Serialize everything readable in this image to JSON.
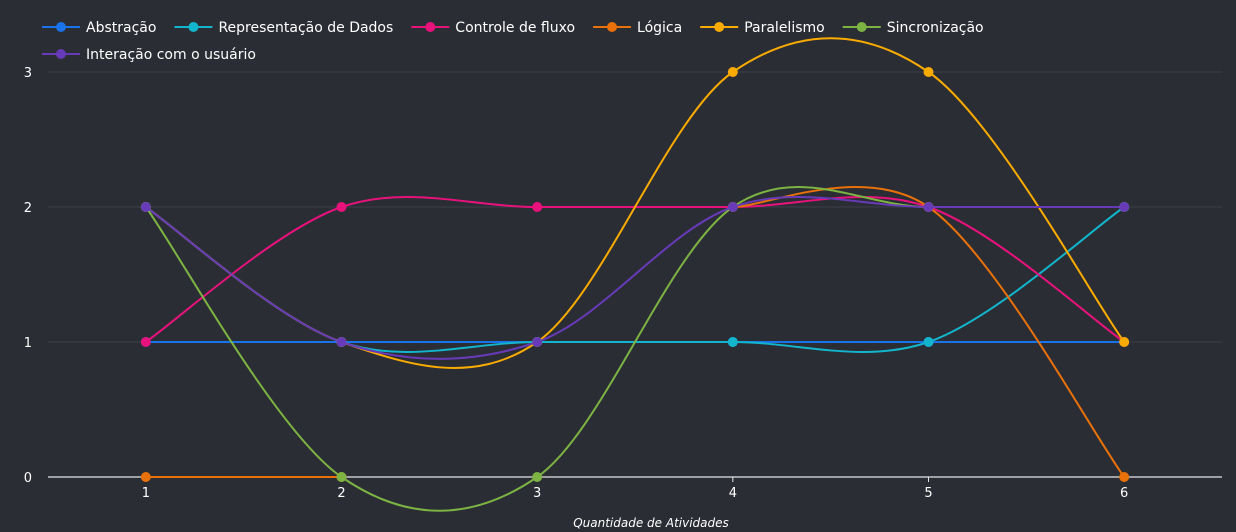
{
  "chart_data": {
    "type": "line",
    "title": "",
    "xlabel": "Quantidade de Atividades",
    "ylabel": "",
    "x": [
      1,
      2,
      3,
      4,
      5,
      6
    ],
    "xlim": [
      0.5,
      6.5
    ],
    "ylim": [
      0,
      3
    ],
    "yticks": [
      0,
      1,
      2,
      3
    ],
    "smooth": true,
    "grid": true,
    "legend": "top-left",
    "series": [
      {
        "name": "Abstração",
        "color": "#1a73e8",
        "values": [
          1,
          1,
          1,
          1,
          1,
          1
        ]
      },
      {
        "name": "Representação de Dados",
        "color": "#12b5cb",
        "values": [
          2,
          1,
          1,
          1,
          1,
          2
        ]
      },
      {
        "name": "Controle de fluxo",
        "color": "#e8127c",
        "values": [
          1,
          2,
          2,
          2,
          2,
          1
        ]
      },
      {
        "name": "Lógica",
        "color": "#e8710a",
        "values": [
          0,
          0,
          null,
          2,
          2,
          0
        ]
      },
      {
        "name": "Paralelismo",
        "color": "#f9ab00",
        "values": [
          2,
          1,
          1,
          3,
          3,
          1
        ]
      },
      {
        "name": "Sincronização",
        "color": "#7cb342",
        "values": [
          2,
          0,
          0,
          2,
          2,
          2
        ]
      },
      {
        "name": "Interação com o usuário",
        "color": "#673ab7",
        "values": [
          2,
          1,
          1,
          2,
          2,
          2
        ]
      }
    ]
  }
}
